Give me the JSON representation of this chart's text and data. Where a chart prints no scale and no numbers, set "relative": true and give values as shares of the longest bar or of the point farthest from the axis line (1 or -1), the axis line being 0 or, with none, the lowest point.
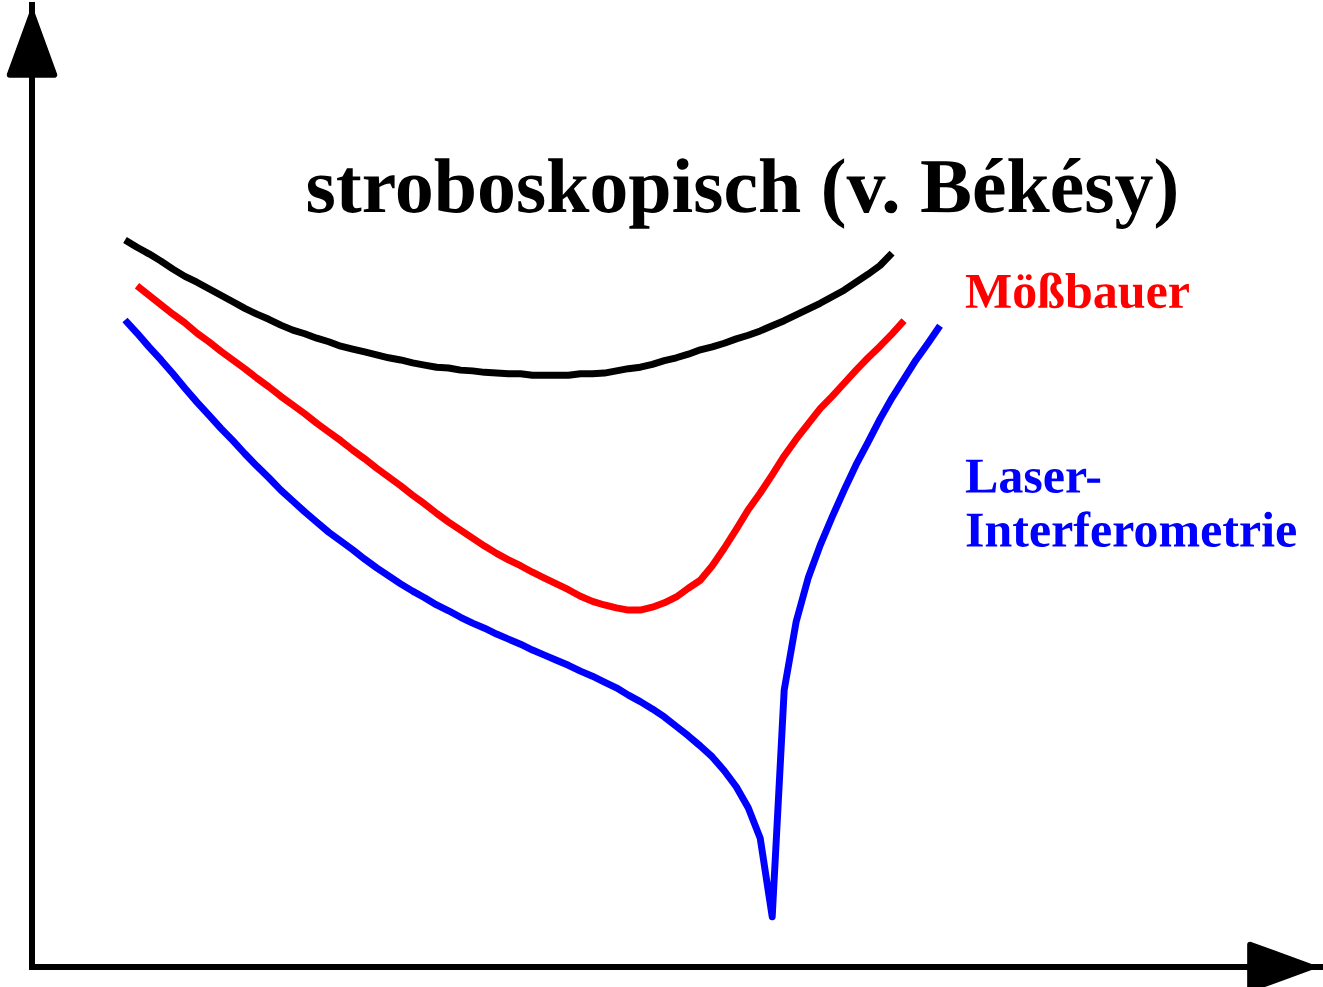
{
  "chart_data": {
    "type": "line",
    "relative": true,
    "categories": [
      null,
      null,
      null,
      null,
      null,
      null,
      null,
      null,
      null,
      null,
      null,
      null,
      null,
      null,
      null,
      null,
      null,
      null,
      null,
      null,
      null,
      null,
      null,
      null,
      null,
      null,
      null,
      null,
      null,
      null,
      null,
      null,
      null,
      null,
      null,
      null,
      null,
      null,
      null,
      null,
      null,
      null,
      null,
      null,
      null,
      null,
      null,
      null,
      null,
      null,
      null,
      null,
      null,
      null,
      null,
      null,
      null,
      null,
      null,
      null,
      null,
      null,
      null,
      null,
      null,
      null,
      null,
      null,
      null
    ],
    "series": [
      {
        "name": "stroboskopisch (v. Békésy)",
        "color": "#000000",
        "values": [
          1.0,
          0.99,
          0.981,
          0.971,
          0.96,
          0.95,
          0.942,
          0.933,
          0.924,
          0.915,
          0.906,
          0.898,
          0.891,
          0.883,
          0.876,
          0.871,
          0.865,
          0.86,
          0.854,
          0.85,
          0.846,
          0.842,
          0.838,
          0.835,
          0.831,
          0.828,
          0.825,
          0.824,
          0.821,
          0.82,
          0.818,
          0.817,
          0.816,
          0.816,
          0.814,
          0.814,
          0.814,
          0.814,
          0.816,
          0.816,
          0.817,
          0.82,
          0.823,
          0.825,
          0.829,
          0.834,
          0.838,
          0.843,
          0.849,
          0.853,
          0.858,
          0.864,
          0.869,
          0.875,
          0.882,
          0.889,
          0.897,
          0.905,
          0.913,
          0.922,
          0.931,
          0.942,
          0.953,
          0.965,
          0.982,
          null,
          null,
          null,
          null
        ]
      },
      {
        "name": "Mößbauer",
        "color": "#ff0000",
        "values": [
          null,
          0.937,
          0.924,
          0.911,
          0.898,
          0.886,
          0.872,
          0.86,
          0.847,
          0.835,
          0.823,
          0.81,
          0.798,
          0.785,
          0.773,
          0.761,
          0.748,
          0.736,
          0.724,
          0.711,
          0.699,
          0.686,
          0.674,
          0.662,
          0.649,
          0.637,
          0.624,
          0.612,
          0.601,
          0.59,
          0.579,
          0.569,
          0.56,
          0.552,
          0.543,
          0.535,
          0.527,
          0.519,
          0.51,
          0.503,
          0.498,
          0.494,
          0.491,
          0.491,
          0.495,
          0.501,
          0.509,
          0.521,
          0.532,
          0.552,
          0.576,
          0.602,
          0.629,
          0.652,
          0.677,
          0.703,
          0.726,
          0.747,
          0.768,
          0.785,
          0.803,
          0.821,
          0.838,
          0.854,
          0.871,
          0.889,
          null,
          null,
          null
        ]
      },
      {
        "name": "Laser-\nInterferometrie",
        "color": "#0000ff",
        "values": [
          0.89,
          0.872,
          0.853,
          0.835,
          0.816,
          0.796,
          0.777,
          0.759,
          0.741,
          0.724,
          0.706,
          0.689,
          0.673,
          0.656,
          0.641,
          0.626,
          0.612,
          0.598,
          0.586,
          0.574,
          0.561,
          0.549,
          0.538,
          0.527,
          0.517,
          0.508,
          0.498,
          0.49,
          0.481,
          0.473,
          0.466,
          0.458,
          0.451,
          0.444,
          0.436,
          0.429,
          0.422,
          0.415,
          0.407,
          0.4,
          0.392,
          0.384,
          0.374,
          0.365,
          0.355,
          0.344,
          0.331,
          0.318,
          0.304,
          0.289,
          0.27,
          0.248,
          0.219,
          0.177,
          0.069,
          0.381,
          0.475,
          0.535,
          0.58,
          0.619,
          0.656,
          0.691,
          0.722,
          0.754,
          0.783,
          0.809,
          0.835,
          0.858,
          0.882
        ]
      }
    ]
  }
}
